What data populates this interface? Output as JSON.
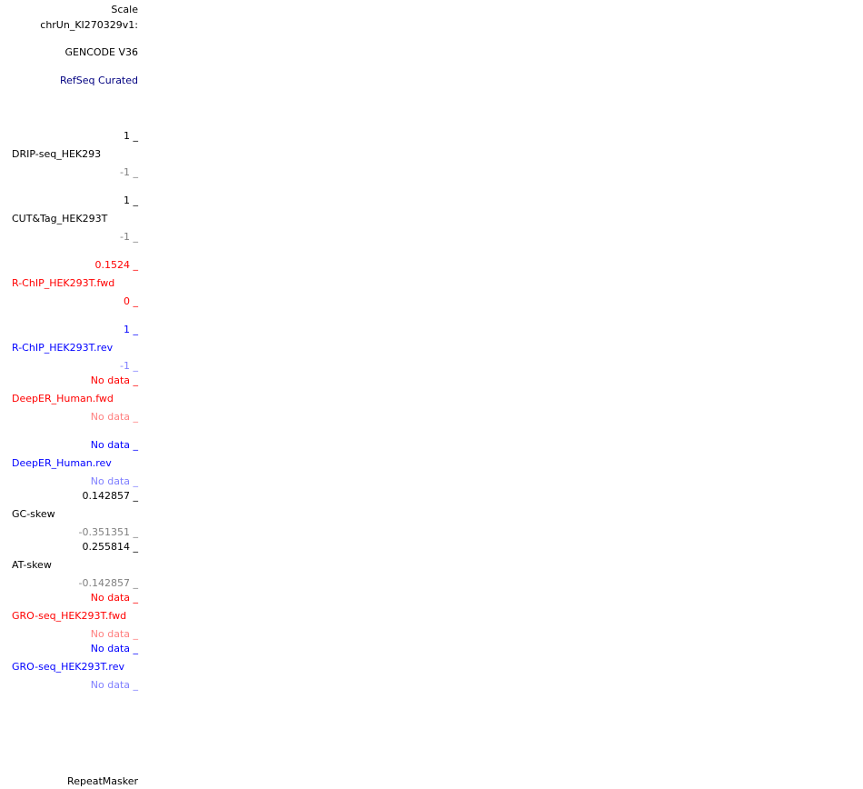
{
  "labels": {
    "scale": "Scale",
    "chrom": "chrUn_KI270329v1:",
    "gencode": "GENCODE V36",
    "refseq": "RefSeq Curated",
    "repeatmasker": "RepeatMasker"
  },
  "tracks": [
    {
      "name": "DRIP-seq_HEK293",
      "max": "1 _",
      "min": "-1 _"
    },
    {
      "name": "CUT&Tag_HEK293T",
      "max": "1 _",
      "min": "-1 _"
    },
    {
      "name": "R-ChIP_HEK293T.fwd",
      "max": "0.1524 _",
      "min": "0 _"
    },
    {
      "name": "R-ChIP_HEK293T.rev",
      "max": "1 _",
      "min": "-1 _"
    },
    {
      "name": "DeepER_Human.fwd",
      "max": "No data _",
      "min": "No data _"
    },
    {
      "name": "DeepER_Human.rev",
      "max": "No data _",
      "min": "No data _"
    },
    {
      "name": "GC-skew",
      "max": "0.142857 _",
      "min": "-0.351351 _"
    },
    {
      "name": "AT-skew",
      "max": "0.255814 _",
      "min": "-0.142857 _"
    },
    {
      "name": "GRO-seq_HEK293T.fwd",
      "max": "No data _",
      "min": "No data _"
    },
    {
      "name": "GRO-seq_HEK293T.rev",
      "max": "No data _",
      "min": "No data _"
    }
  ],
  "colors": {
    "black": "#000000",
    "navy": "#000080",
    "gray": "#808080",
    "red": "#ff0000",
    "pink": "#ff8080",
    "blue": "#0000ff",
    "light_blue": "#8080ff"
  }
}
